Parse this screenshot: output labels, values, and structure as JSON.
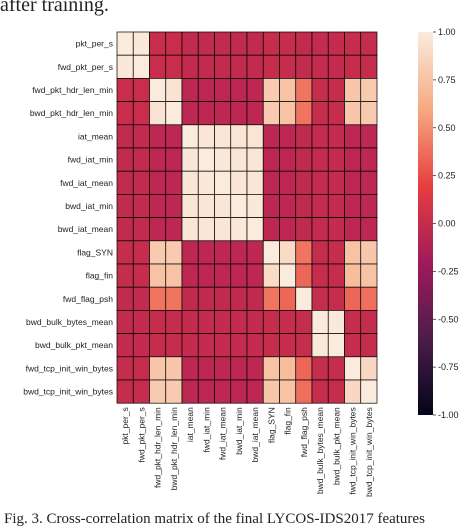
{
  "captions": {
    "top": "after training.",
    "bottom": "Fig. 3.  Cross-correlation matrix of the final LYCOS-IDS2017 features"
  },
  "chart_data": {
    "type": "heatmap",
    "title": "",
    "labels": [
      "pkt_per_s",
      "fwd_pkt_per_s",
      "fwd_pkt_hdr_len_min",
      "bwd_pkt_hdr_len_min",
      "iat_mean",
      "fwd_iat_min",
      "fwd_iat_mean",
      "bwd_iat_min",
      "bwd_iat_mean",
      "flag_SYN",
      "flag_fin",
      "fwd_flag_psh",
      "bwd_bulk_bytes_mean",
      "bwd_bulk_pkt_mean",
      "fwd_tcp_init_win_bytes",
      "bwd_tcp_init_win_bytes"
    ],
    "values": [
      [
        1.0,
        0.98,
        0.02,
        0.02,
        -0.02,
        -0.02,
        -0.02,
        -0.02,
        -0.02,
        0.0,
        0.0,
        -0.02,
        -0.01,
        -0.01,
        0.0,
        0.0
      ],
      [
        0.98,
        1.0,
        0.02,
        0.02,
        -0.02,
        -0.02,
        -0.02,
        -0.02,
        -0.02,
        0.0,
        0.0,
        -0.02,
        -0.01,
        -0.01,
        0.0,
        0.0
      ],
      [
        0.02,
        0.02,
        1.0,
        0.95,
        -0.05,
        -0.05,
        -0.05,
        -0.05,
        -0.05,
        0.8,
        0.75,
        0.4,
        0.0,
        0.0,
        0.78,
        0.8
      ],
      [
        0.02,
        0.02,
        0.95,
        1.0,
        -0.05,
        -0.05,
        -0.05,
        -0.05,
        -0.05,
        0.8,
        0.75,
        0.4,
        0.0,
        0.0,
        0.78,
        0.8
      ],
      [
        -0.02,
        -0.02,
        -0.05,
        -0.05,
        1.0,
        0.97,
        0.97,
        0.96,
        0.96,
        -0.05,
        -0.05,
        -0.03,
        -0.01,
        -0.01,
        -0.05,
        -0.05
      ],
      [
        -0.02,
        -0.02,
        -0.05,
        -0.05,
        0.97,
        1.0,
        0.98,
        0.97,
        0.97,
        -0.05,
        -0.05,
        -0.03,
        -0.01,
        -0.01,
        -0.05,
        -0.05
      ],
      [
        -0.02,
        -0.02,
        -0.05,
        -0.05,
        0.97,
        0.98,
        1.0,
        0.97,
        0.97,
        -0.05,
        -0.05,
        -0.03,
        -0.01,
        -0.01,
        -0.05,
        -0.05
      ],
      [
        -0.02,
        -0.02,
        -0.05,
        -0.05,
        0.96,
        0.97,
        0.97,
        1.0,
        0.98,
        -0.05,
        -0.05,
        -0.03,
        -0.01,
        -0.01,
        -0.05,
        -0.05
      ],
      [
        -0.02,
        -0.02,
        -0.05,
        -0.05,
        0.96,
        0.97,
        0.97,
        0.98,
        1.0,
        -0.05,
        -0.05,
        -0.03,
        -0.01,
        -0.01,
        -0.05,
        -0.05
      ],
      [
        0.0,
        0.0,
        0.8,
        0.8,
        -0.05,
        -0.05,
        -0.05,
        -0.05,
        -0.05,
        1.0,
        0.9,
        0.4,
        0.0,
        0.0,
        0.75,
        0.78
      ],
      [
        0.0,
        0.0,
        0.75,
        0.75,
        -0.05,
        -0.05,
        -0.05,
        -0.05,
        -0.05,
        0.9,
        1.0,
        0.35,
        0.0,
        0.0,
        0.72,
        0.75
      ],
      [
        -0.02,
        -0.02,
        0.4,
        0.4,
        -0.03,
        -0.03,
        -0.03,
        -0.03,
        -0.03,
        0.4,
        0.35,
        1.0,
        0.0,
        0.0,
        0.35,
        0.38
      ],
      [
        -0.01,
        -0.01,
        0.0,
        0.0,
        -0.01,
        -0.01,
        -0.01,
        -0.01,
        -0.01,
        0.0,
        0.0,
        0.0,
        1.0,
        0.98,
        0.0,
        0.0
      ],
      [
        -0.01,
        -0.01,
        0.0,
        0.0,
        -0.01,
        -0.01,
        -0.01,
        -0.01,
        -0.01,
        0.0,
        0.0,
        0.0,
        0.98,
        1.0,
        0.0,
        0.0
      ],
      [
        0.0,
        0.0,
        0.78,
        0.78,
        -0.05,
        -0.05,
        -0.05,
        -0.05,
        -0.05,
        0.75,
        0.72,
        0.35,
        0.0,
        0.0,
        1.0,
        0.88
      ],
      [
        0.0,
        0.0,
        0.8,
        0.8,
        -0.05,
        -0.05,
        -0.05,
        -0.05,
        -0.05,
        0.78,
        0.75,
        0.38,
        0.0,
        0.0,
        0.88,
        1.0
      ]
    ],
    "vmin": -1.0,
    "vmax": 1.0,
    "colormap": "rocket",
    "colorbar_ticks": [
      "1.00",
      "0.75",
      "0.50",
      "0.25",
      "0.00",
      "-0.25",
      "-0.50",
      "-0.75",
      "-1.00"
    ],
    "colorbar_tick_values": [
      1.0,
      0.75,
      0.5,
      0.25,
      0.0,
      -0.25,
      -0.5,
      -0.75,
      -1.0
    ],
    "grid": true,
    "cell_border_color": "#000000",
    "colormap_stops": [
      "#03051a",
      "#4c1d4b",
      "#a11a5b",
      "#e83f3f",
      "#f6aa82",
      "#faebdd"
    ]
  }
}
